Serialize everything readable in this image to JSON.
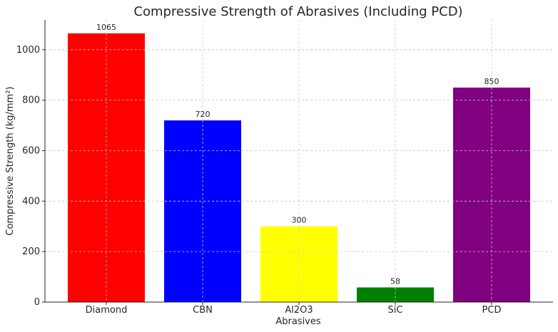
{
  "chart_data": {
    "type": "bar",
    "title": "Compressive Strength of Abrasives (Including PCD)",
    "xlabel": "Abrasives",
    "ylabel": "Compressive Strength (kg/mm²)",
    "categories": [
      "Diamond",
      "CBN",
      "Al2O3",
      "SiC",
      "PCD"
    ],
    "values": [
      1065,
      720,
      300,
      58,
      850
    ],
    "colors": [
      "#ff0000",
      "#0000ff",
      "#ffff00",
      "#008000",
      "#800080"
    ],
    "ylim": [
      0,
      1118
    ],
    "yticks": [
      0,
      200,
      400,
      600,
      800,
      1000
    ],
    "grid": true,
    "legend": "none"
  }
}
